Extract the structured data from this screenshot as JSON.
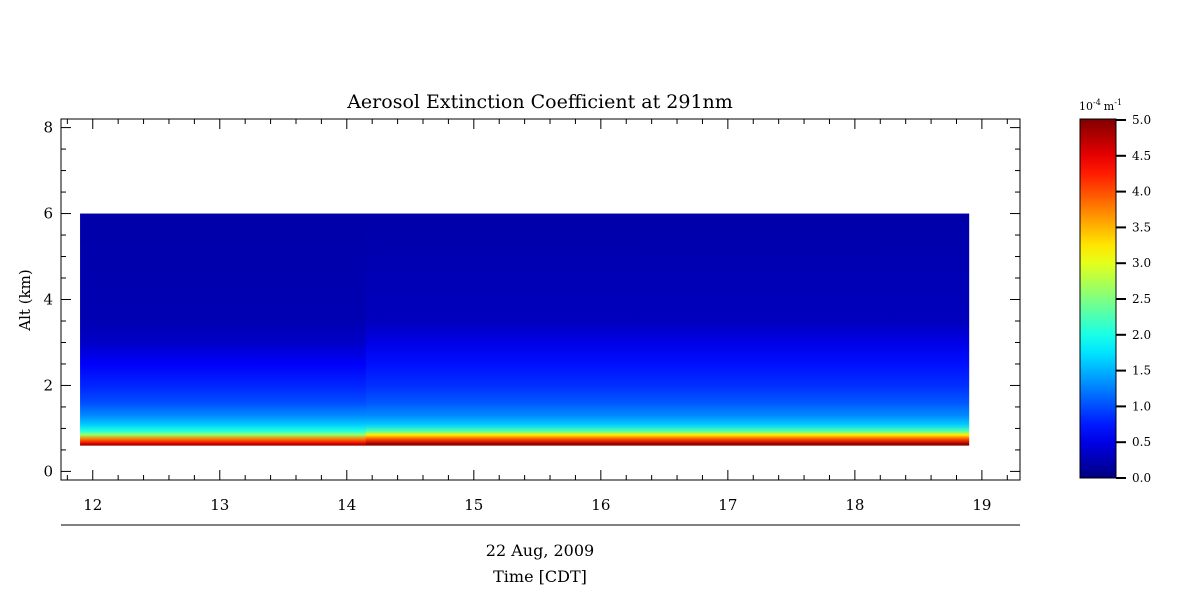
{
  "chart_data": {
    "type": "heatmap",
    "title": "Aerosol Extinction Coefficient at 291nm",
    "ylabel": "Alt (km)",
    "xlabel_date": "22 Aug, 2009",
    "xlabel": "Time [CDT]",
    "xlim": [
      11.75,
      19.3
    ],
    "ylim": [
      -0.2,
      8.2
    ],
    "x_ticks": [
      12,
      13,
      14,
      15,
      16,
      17,
      18,
      19
    ],
    "y_ticks": [
      0,
      2,
      4,
      6,
      8
    ],
    "data_extent": {
      "x": [
        11.9,
        18.9
      ],
      "y": [
        0.6,
        6.0
      ]
    },
    "profile_altitudes_km": [
      0.6,
      0.65,
      0.75,
      0.85,
      0.95,
      1.1,
      1.3,
      1.6,
      2.0,
      2.5,
      3.0,
      3.5,
      6.0
    ],
    "profiles": [
      {
        "x_start": 11.9,
        "x_end": 14.15,
        "values": [
          5.0,
          4.5,
          3.8,
          2.6,
          2.0,
          1.6,
          1.3,
          1.0,
          0.8,
          0.6,
          0.35,
          0.25,
          0.2
        ]
      },
      {
        "x_start": 14.15,
        "x_end": 18.9,
        "values": [
          5.0,
          4.8,
          4.0,
          3.2,
          2.2,
          1.6,
          1.3,
          1.05,
          0.85,
          0.7,
          0.5,
          0.3,
          0.2
        ]
      }
    ],
    "colorbar": {
      "unit_prefix": "10",
      "unit_exp": "-4",
      "unit": "m",
      "unit_unit_exp": "-1",
      "range": [
        0.0,
        5.0
      ],
      "tick_values": [
        0.0,
        0.5,
        1.0,
        1.5,
        2.0,
        2.5,
        3.0,
        3.5,
        4.0,
        4.5,
        5.0
      ],
      "tick_labels": [
        "0.0",
        "0.5",
        "1.0",
        "1.5",
        "2.0",
        "2.5",
        "3.0",
        "3.5",
        "4.0",
        "4.5",
        "5.0"
      ],
      "colormap": "jet"
    },
    "grid": false
  }
}
